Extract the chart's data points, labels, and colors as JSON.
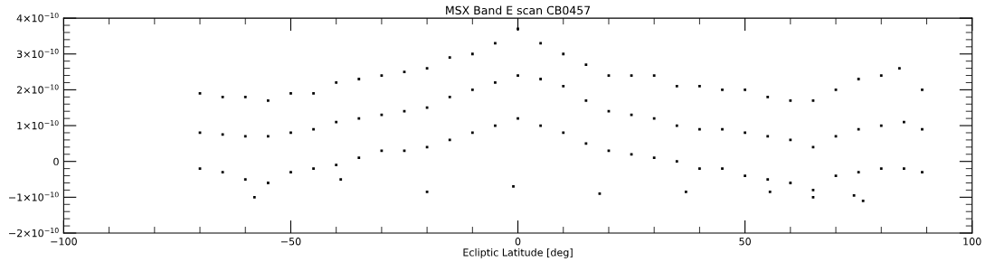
{
  "chart_data": {
    "type": "scatter",
    "title": "MSX Band E scan CB0457",
    "xlabel": "Ecliptic Latitude [deg]",
    "xlim": [
      -100,
      100
    ],
    "xticks": [
      -100,
      -50,
      0,
      50,
      100
    ],
    "ylim": [
      -2e-10,
      4e-10
    ],
    "yticks": [
      {
        "value": -2e-10,
        "label": "−2×10$^{−10}$"
      },
      {
        "value": -1e-10,
        "label": "−1×10$^{−10}$"
      },
      {
        "value": 0,
        "label": "0"
      },
      {
        "value": 1e-10,
        "label": "1×10$^{−10}$"
      },
      {
        "value": 2e-10,
        "label": "2×10$^{−10}$"
      },
      {
        "value": 3e-10,
        "label": "3×10$^{−10}$"
      },
      {
        "value": 4e-10,
        "label": "4×10$^{−10}$"
      }
    ],
    "marker": "square",
    "grid": false,
    "series": [
      {
        "color": "#000000",
        "x": [
          -70,
          -65,
          -60,
          -55,
          -50,
          -45,
          -40,
          -35,
          -30,
          -25,
          -20,
          -15,
          -10,
          -5,
          0,
          5,
          10,
          15,
          20,
          25,
          30,
          35,
          40,
          45,
          50,
          55,
          60,
          65,
          70,
          75,
          80,
          85,
          89,
          -70,
          -65,
          -60,
          -55,
          -50,
          -45,
          -40,
          -35,
          -30,
          -25,
          -20,
          -15,
          -10,
          -5,
          0,
          5,
          10,
          15,
          20,
          25,
          30,
          35,
          40,
          45,
          50,
          55,
          60,
          65,
          70,
          75,
          80,
          84,
          89,
          -70,
          -65,
          -60,
          -55,
          -50,
          -45,
          -40,
          -35,
          -30,
          -25,
          -20,
          -15,
          -10,
          -5,
          0,
          5,
          10,
          15,
          20,
          25,
          30,
          35,
          40,
          45,
          50,
          55,
          60,
          65,
          70,
          75,
          80,
          85,
          89,
          -58,
          -39,
          -20,
          -1,
          18,
          37,
          55.5,
          65,
          74,
          76
        ],
        "values": [
          8e-11,
          7.5e-11,
          7e-11,
          7e-11,
          8e-11,
          9e-11,
          1.1e-10,
          1.2e-10,
          1.3e-10,
          1.4e-10,
          1.5e-10,
          1.8e-10,
          2e-10,
          2.2e-10,
          2.4e-10,
          2.3e-10,
          2.1e-10,
          1.7e-10,
          1.4e-10,
          1.3e-10,
          1.2e-10,
          1e-10,
          9e-11,
          9e-11,
          8e-11,
          7e-11,
          6e-11,
          4e-11,
          7e-11,
          9e-11,
          1e-10,
          1.1e-10,
          9e-11,
          1.9e-10,
          1.8e-10,
          1.8e-10,
          1.7e-10,
          1.9e-10,
          1.9e-10,
          2.2e-10,
          2.3e-10,
          2.4e-10,
          2.5e-10,
          2.6e-10,
          2.9e-10,
          3e-10,
          3.3e-10,
          3.7e-10,
          3.3e-10,
          3e-10,
          2.7e-10,
          2.4e-10,
          2.4e-10,
          2.4e-10,
          2.1e-10,
          2.1e-10,
          2e-10,
          2e-10,
          1.8e-10,
          1.7e-10,
          1.7e-10,
          2e-10,
          2.3e-10,
          2.4e-10,
          2.6e-10,
          2e-10,
          -2e-11,
          -3e-11,
          -5e-11,
          -6e-11,
          -3e-11,
          -2e-11,
          -1e-11,
          1e-11,
          3e-11,
          3e-11,
          4e-11,
          6e-11,
          8e-11,
          1e-10,
          1.2e-10,
          1e-10,
          8e-11,
          5e-11,
          3e-11,
          2e-11,
          1e-11,
          0.0,
          -2e-11,
          -2e-11,
          -4e-11,
          -5e-11,
          -6e-11,
          -8e-11,
          -4e-11,
          -3e-11,
          -2e-11,
          -2e-11,
          -3e-11,
          -1e-10,
          -5e-11,
          -8.5e-11,
          -7e-11,
          -9e-11,
          -8.5e-11,
          -8.5e-11,
          -1e-10,
          -9.5e-11,
          -1.1e-10
        ]
      }
    ]
  }
}
